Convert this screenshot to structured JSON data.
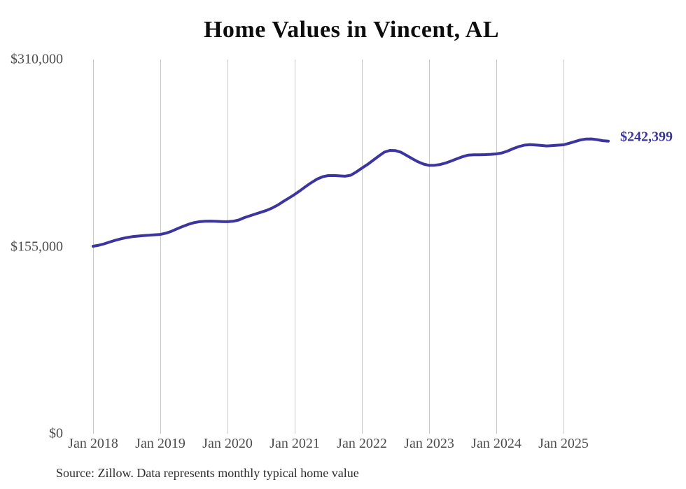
{
  "title": "Home Values in Vincent, AL",
  "end_label": "$242,399",
  "source_note": "Source: Zillow. Data represents monthly typical home value",
  "colors": {
    "line": "#3c35a0",
    "end_label": "#3c35a0",
    "grid": "#c8c8c8",
    "tick_text": "#4d4d4d",
    "title_text": "#0d0d0d",
    "source_text": "#2e2e2e",
    "background": "#ffffff"
  },
  "y_axis": {
    "ticks": [
      {
        "label": "$310,000",
        "value": 310000
      },
      {
        "label": "$155,000",
        "value": 155000
      },
      {
        "label": "$0",
        "value": 0
      }
    ]
  },
  "x_axis": {
    "tick_labels": [
      "Jan 2018",
      "Jan 2019",
      "Jan 2020",
      "Jan 2021",
      "Jan 2022",
      "Jan 2023",
      "Jan 2024",
      "Jan 2025"
    ]
  },
  "chart_data": {
    "type": "line",
    "title": "Home Values in Vincent, AL",
    "series_name": "Typical home value (monthly)",
    "ylim": [
      0,
      310000
    ],
    "yticks": [
      0,
      155000,
      310000
    ],
    "ytick_labels": [
      "$0",
      "$155,000",
      "$310,000"
    ],
    "xtick_labels": [
      "Jan 2018",
      "Jan 2019",
      "Jan 2020",
      "Jan 2021",
      "Jan 2022",
      "Jan 2023",
      "Jan 2024",
      "Jan 2025"
    ],
    "grid": "vertical-only",
    "legend": "none",
    "line_color": "#3c35a0",
    "end_value": 242399,
    "end_value_label": "$242,399",
    "x": [
      "2018-01",
      "2018-02",
      "2018-03",
      "2018-04",
      "2018-05",
      "2018-06",
      "2018-07",
      "2018-08",
      "2018-09",
      "2018-10",
      "2018-11",
      "2018-12",
      "2019-01",
      "2019-02",
      "2019-03",
      "2019-04",
      "2019-05",
      "2019-06",
      "2019-07",
      "2019-08",
      "2019-09",
      "2019-10",
      "2019-11",
      "2019-12",
      "2020-01",
      "2020-02",
      "2020-03",
      "2020-04",
      "2020-05",
      "2020-06",
      "2020-07",
      "2020-08",
      "2020-09",
      "2020-10",
      "2020-11",
      "2020-12",
      "2021-01",
      "2021-02",
      "2021-03",
      "2021-04",
      "2021-05",
      "2021-06",
      "2021-07",
      "2021-08",
      "2021-09",
      "2021-10",
      "2021-11",
      "2021-12",
      "2022-01",
      "2022-02",
      "2022-03",
      "2022-04",
      "2022-05",
      "2022-06",
      "2022-07",
      "2022-08",
      "2022-09",
      "2022-10",
      "2022-11",
      "2022-12",
      "2023-01",
      "2023-02",
      "2023-03",
      "2023-04",
      "2023-05",
      "2023-06",
      "2023-07",
      "2023-08",
      "2023-09",
      "2023-10",
      "2023-11",
      "2023-12",
      "2024-01",
      "2024-02",
      "2024-03",
      "2024-04",
      "2024-05",
      "2024-06",
      "2024-07",
      "2024-08",
      "2024-09",
      "2024-10",
      "2024-11",
      "2024-12",
      "2025-01",
      "2025-02",
      "2025-03",
      "2025-04",
      "2025-05",
      "2025-06",
      "2025-07",
      "2025-08",
      "2025-09"
    ],
    "values": [
      155300,
      156100,
      157300,
      158800,
      160300,
      161500,
      162500,
      163200,
      163700,
      164100,
      164400,
      164800,
      165100,
      166100,
      167700,
      169700,
      171700,
      173400,
      174800,
      175600,
      176000,
      176100,
      175900,
      175700,
      175600,
      176000,
      177000,
      179000,
      180500,
      182000,
      183500,
      185000,
      187000,
      189500,
      192500,
      195300,
      198200,
      201500,
      204900,
      208100,
      210900,
      212900,
      213800,
      213900,
      213600,
      213300,
      214100,
      216800,
      220000,
      223000,
      226500,
      230000,
      233200,
      234700,
      234500,
      233100,
      230500,
      227800,
      225300,
      223400,
      222300,
      222400,
      223000,
      224300,
      226000,
      227800,
      229500,
      230800,
      231000,
      231100,
      231200,
      231400,
      231800,
      232600,
      234100,
      236100,
      237800,
      239000,
      239400,
      239200,
      238800,
      238400,
      238700,
      239000,
      239300,
      240600,
      242000,
      243300,
      244100,
      244200,
      243600,
      242700,
      242399
    ]
  }
}
